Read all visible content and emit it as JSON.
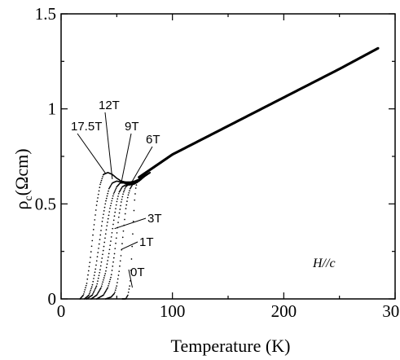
{
  "chart_data": {
    "type": "scatter",
    "xlabel": "Temperature (K)",
    "ylabel_main": "ρ",
    "ylabel_sub": "c",
    "ylabel_units": "(Ωcm)",
    "xlim": [
      0,
      300
    ],
    "ylim": [
      0,
      1.5
    ],
    "x_ticks": [
      0,
      100,
      200,
      300
    ],
    "y_ticks": [
      0,
      0.5,
      1,
      1.5
    ],
    "x_tick_labels": [
      "0",
      "100",
      "200",
      "300"
    ],
    "y_tick_labels": [
      "0",
      "0.5",
      "1",
      "1.5"
    ],
    "annotation": "H//c",
    "high_temp": {
      "x": [
        70,
        100,
        150,
        200,
        250,
        285
      ],
      "y": [
        0.64,
        0.76,
        0.91,
        1.06,
        1.21,
        1.32
      ]
    },
    "series": [
      {
        "name": "0T",
        "x": [
          55,
          58,
          60,
          62,
          63,
          64,
          65,
          66,
          67,
          68,
          70,
          72,
          75,
          80
        ],
        "y": [
          0,
          0,
          0.02,
          0.08,
          0.18,
          0.3,
          0.42,
          0.52,
          0.58,
          0.61,
          0.63,
          0.64,
          0.65,
          0.665
        ],
        "label_pos": [
          160,
          339
        ],
        "leader_to": [
          64,
          0.06
        ]
      },
      {
        "name": "1T",
        "x": [
          40,
          45,
          48,
          50,
          52,
          54,
          56,
          58,
          60,
          62,
          64,
          66,
          68,
          70,
          75,
          80
        ],
        "y": [
          0,
          0.01,
          0.03,
          0.07,
          0.14,
          0.24,
          0.36,
          0.47,
          0.54,
          0.58,
          0.6,
          0.61,
          0.615,
          0.625,
          0.645,
          0.665
        ],
        "label_pos": [
          171,
          302
        ],
        "leader_to": [
          54,
          0.26
        ]
      },
      {
        "name": "3T",
        "x": [
          32,
          38,
          42,
          45,
          48,
          50,
          52,
          54,
          56,
          58,
          60,
          63,
          66,
          70,
          75,
          80
        ],
        "y": [
          0,
          0.02,
          0.06,
          0.12,
          0.24,
          0.34,
          0.44,
          0.51,
          0.56,
          0.59,
          0.6,
          0.605,
          0.61,
          0.62,
          0.645,
          0.665
        ],
        "label_pos": [
          181,
          273
        ],
        "leader_to": [
          48,
          0.37
        ]
      },
      {
        "name": "6T",
        "x": [
          27,
          32,
          36,
          40,
          43,
          46,
          48,
          50,
          52,
          55,
          58,
          62,
          66,
          70,
          75,
          80
        ],
        "y": [
          0,
          0.02,
          0.06,
          0.14,
          0.24,
          0.36,
          0.44,
          0.51,
          0.56,
          0.59,
          0.6,
          0.6,
          0.605,
          0.62,
          0.645,
          0.665
        ],
        "label_pos": [
          179,
          176
        ],
        "leader_to": [
          62,
          0.6
        ]
      },
      {
        "name": "9T",
        "x": [
          23,
          28,
          32,
          35,
          38,
          41,
          44,
          47,
          50,
          53,
          56,
          60,
          65,
          70,
          75,
          80
        ],
        "y": [
          0,
          0.02,
          0.07,
          0.15,
          0.26,
          0.38,
          0.48,
          0.55,
          0.59,
          0.61,
          0.61,
          0.605,
          0.605,
          0.62,
          0.645,
          0.665
        ],
        "label_pos": [
          153,
          160
        ],
        "leader_to": [
          54,
          0.61
        ]
      },
      {
        "name": "12T",
        "x": [
          21,
          25,
          28,
          31,
          34,
          37,
          40,
          43,
          46,
          50,
          54,
          58,
          62,
          66,
          70,
          75,
          80
        ],
        "y": [
          0,
          0.02,
          0.07,
          0.16,
          0.28,
          0.41,
          0.51,
          0.58,
          0.61,
          0.62,
          0.615,
          0.61,
          0.61,
          0.615,
          0.625,
          0.645,
          0.665
        ],
        "label_pos": [
          121,
          134
        ],
        "leader_to": [
          46,
          0.63
        ]
      },
      {
        "name": "17.5T",
        "x": [
          17,
          20,
          23,
          26,
          29,
          32,
          35,
          38,
          42,
          46,
          50,
          54,
          58,
          62,
          66,
          70,
          75,
          80
        ],
        "y": [
          0,
          0.02,
          0.08,
          0.2,
          0.36,
          0.5,
          0.6,
          0.655,
          0.665,
          0.655,
          0.635,
          0.62,
          0.615,
          0.615,
          0.62,
          0.63,
          0.645,
          0.665
        ],
        "label_pos": [
          87,
          160
        ],
        "leader_to": [
          40,
          0.66
        ]
      }
    ]
  }
}
